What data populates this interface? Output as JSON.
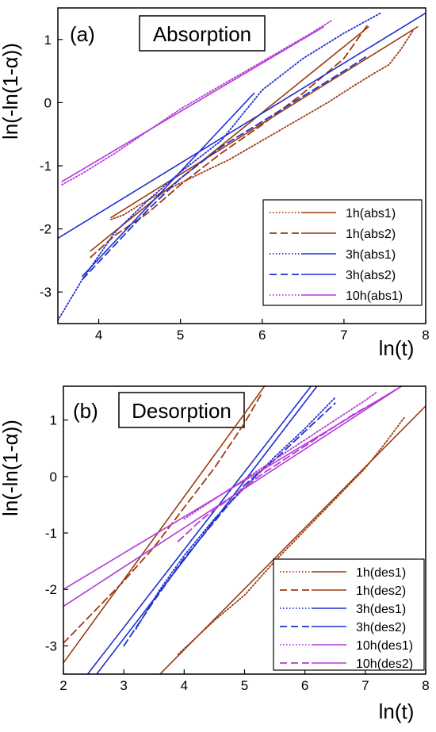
{
  "chart_data": [
    {
      "type": "line",
      "panel_label": "(a)",
      "title": "Absorption",
      "xlabel": "ln(t)",
      "ylabel": "ln(-ln(1-α))",
      "xlim": [
        3.5,
        8
      ],
      "ylim": [
        -3.5,
        1.5
      ],
      "xticks": [
        "4",
        "5",
        "6",
        "7",
        "8"
      ],
      "yticks": [
        "-3",
        "-2",
        "-1",
        "0",
        "1"
      ],
      "xtick_values": [
        4,
        5,
        6,
        7,
        8
      ],
      "ytick_values": [
        -3,
        -2,
        -1,
        0,
        1
      ],
      "legend_position": "bottom-right",
      "series": [
        {
          "name": "1h(abs1)",
          "color": "#9c3b12",
          "dash": "dotted",
          "x": [
            4.15,
            4.3,
            4.5,
            4.8,
            5.2,
            5.6,
            6.0,
            6.4,
            6.8,
            7.1,
            7.35,
            7.55,
            7.7,
            7.85
          ],
          "y": [
            -1.85,
            -1.78,
            -1.62,
            -1.4,
            -1.15,
            -0.9,
            -0.6,
            -0.3,
            0.0,
            0.25,
            0.45,
            0.6,
            0.85,
            1.15
          ]
        },
        {
          "name": "1h(abs1) fit",
          "color": "#9c3b12",
          "dash": "solid",
          "fit": true,
          "x": [
            4.15,
            7.9
          ],
          "y": [
            -1.82,
            1.2
          ]
        },
        {
          "name": "1h(abs2)",
          "color": "#9c3b12",
          "dash": "dashed",
          "x": [
            3.9,
            4.2,
            4.6,
            5.0,
            5.5,
            6.0,
            6.5,
            7.0,
            7.3
          ],
          "y": [
            -2.45,
            -2.1,
            -1.75,
            -1.3,
            -0.8,
            -0.35,
            0.15,
            0.7,
            1.25
          ]
        },
        {
          "name": "1h(abs2) fit",
          "color": "#9c3b12",
          "dash": "solid",
          "fit": true,
          "x": [
            3.9,
            7.3
          ],
          "y": [
            -2.35,
            1.2
          ]
        },
        {
          "name": "3h(abs1)",
          "color": "#1f2fcf",
          "dash": "dotted",
          "x": [
            3.5,
            3.8,
            4.2,
            4.6,
            5.0,
            5.5,
            6.0,
            6.5,
            7.0,
            7.45
          ],
          "y": [
            -3.45,
            -2.8,
            -2.05,
            -1.55,
            -1.1,
            -0.6,
            0.2,
            0.7,
            1.1,
            1.42
          ]
        },
        {
          "name": "3h(abs1) fit",
          "color": "#1f2fcf",
          "dash": "solid",
          "fit": true,
          "x": [
            3.5,
            8.0
          ],
          "y": [
            -2.15,
            1.42
          ]
        },
        {
          "name": "3h(abs2)",
          "color": "#1f2fcf",
          "dash": "dashed",
          "x": [
            3.8,
            4.2,
            4.6,
            5.0,
            5.5,
            6.0,
            6.5,
            7.0,
            7.3
          ],
          "y": [
            -2.8,
            -2.25,
            -1.7,
            -1.2,
            -0.7,
            -0.3,
            0.1,
            0.5,
            0.75
          ]
        },
        {
          "name": "3h(abs2) fit",
          "color": "#1f2fcf",
          "dash": "solid",
          "fit": true,
          "x": [
            3.8,
            5.9
          ],
          "y": [
            -2.75,
            0.15
          ]
        },
        {
          "name": "10h(abs1)",
          "color": "#b33ad6",
          "dash": "dotted",
          "x": [
            3.55,
            3.8,
            4.2,
            4.6,
            5.0,
            5.4,
            5.8,
            6.2,
            6.6,
            6.85
          ],
          "y": [
            -1.3,
            -1.12,
            -0.8,
            -0.45,
            -0.1,
            0.2,
            0.5,
            0.8,
            1.1,
            1.3
          ]
        },
        {
          "name": "10h(abs1) fit",
          "color": "#b33ad6",
          "dash": "solid",
          "fit": true,
          "x": [
            3.55,
            6.75
          ],
          "y": [
            -1.25,
            1.2
          ]
        }
      ]
    },
    {
      "type": "line",
      "panel_label": "(b)",
      "title": "Desorption",
      "xlabel": "ln(t)",
      "ylabel": "ln(-ln(1-α))",
      "xlim": [
        2,
        8
      ],
      "ylim": [
        -3.5,
        1.6
      ],
      "xticks": [
        "2",
        "3",
        "4",
        "5",
        "6",
        "7",
        "8"
      ],
      "yticks": [
        "-3",
        "-2",
        "-1",
        "0",
        "1"
      ],
      "xtick_values": [
        2,
        3,
        4,
        5,
        6,
        7,
        8
      ],
      "ytick_values": [
        -3,
        -2,
        -1,
        0,
        1
      ],
      "legend_position": "bottom-right",
      "series": [
        {
          "name": "1h(des1)",
          "color": "#9c3b12",
          "dash": "dotted",
          "x": [
            3.9,
            4.1,
            4.5,
            5.0,
            5.5,
            6.0,
            6.5,
            7.0,
            7.3,
            7.65
          ],
          "y": [
            -3.15,
            -2.95,
            -2.55,
            -2.1,
            -1.5,
            -0.95,
            -0.4,
            0.15,
            0.55,
            1.05
          ]
        },
        {
          "name": "1h(des1) fit",
          "color": "#9c3b12",
          "dash": "solid",
          "fit": true,
          "x": [
            3.6,
            8.0
          ],
          "y": [
            -3.5,
            1.25
          ]
        },
        {
          "name": "1h(des2)",
          "color": "#9c3b12",
          "dash": "dashed",
          "x": [
            2.0,
            2.5,
            3.0,
            3.5,
            4.0,
            4.5,
            5.0,
            5.3
          ],
          "y": [
            -2.95,
            -2.4,
            -1.85,
            -1.25,
            -0.55,
            0.15,
            0.95,
            1.5
          ]
        },
        {
          "name": "1h(des2) fit",
          "color": "#9c3b12",
          "dash": "solid",
          "fit": true,
          "x": [
            2.0,
            5.33
          ],
          "y": [
            -3.3,
            1.6
          ]
        },
        {
          "name": "3h(des1)",
          "color": "#1f2fcf",
          "dash": "dotted",
          "x": [
            3.2,
            3.6,
            4.0,
            4.5,
            5.0,
            5.5,
            6.0,
            6.5
          ],
          "y": [
            -2.7,
            -2.0,
            -1.4,
            -0.75,
            -0.2,
            0.35,
            0.85,
            1.4
          ]
        },
        {
          "name": "3h(des1) fit",
          "color": "#1f2fcf",
          "dash": "solid",
          "fit": true,
          "x": [
            2.55,
            6.2
          ],
          "y": [
            -3.5,
            1.6
          ]
        },
        {
          "name": "3h(des2)",
          "color": "#1f2fcf",
          "dash": "dashed",
          "x": [
            3.0,
            3.5,
            4.0,
            4.5,
            5.0,
            5.5,
            6.0,
            6.5
          ],
          "y": [
            -3.0,
            -2.2,
            -1.45,
            -0.8,
            -0.15,
            0.3,
            0.8,
            1.3
          ]
        },
        {
          "name": "3h(des2) fit",
          "color": "#1f2fcf",
          "dash": "solid",
          "fit": true,
          "x": [
            2.4,
            6.1
          ],
          "y": [
            -3.5,
            1.6
          ]
        },
        {
          "name": "10h(des1)",
          "color": "#b33ad6",
          "dash": "dotted",
          "x": [
            4.0,
            4.5,
            5.0,
            5.5,
            6.0,
            6.5,
            7.0,
            7.2
          ],
          "y": [
            -0.75,
            -0.4,
            -0.05,
            0.3,
            0.65,
            1.0,
            1.35,
            1.5
          ]
        },
        {
          "name": "10h(des1) fit",
          "color": "#b33ad6",
          "dash": "solid",
          "fit": true,
          "x": [
            2.0,
            7.6
          ],
          "y": [
            -2.0,
            1.6
          ]
        },
        {
          "name": "10h(des2)",
          "color": "#b33ad6",
          "dash": "dashed",
          "x": [
            3.9,
            4.3,
            4.8,
            5.3,
            5.8,
            6.3,
            6.8,
            7.3
          ],
          "y": [
            -1.15,
            -0.75,
            -0.35,
            0.05,
            0.4,
            0.75,
            1.1,
            1.4
          ]
        },
        {
          "name": "10h(des2) fit",
          "color": "#b33ad6",
          "dash": "solid",
          "fit": true,
          "x": [
            2.0,
            7.6
          ],
          "y": [
            -2.3,
            1.6
          ]
        }
      ]
    }
  ]
}
